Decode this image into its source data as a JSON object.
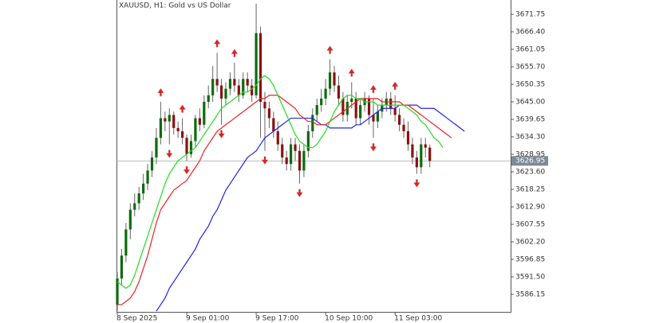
{
  "chart_data": {
    "type": "candlestick",
    "title": "XAUUSD, H1:  Gold vs US Dollar",
    "categories": [
      "8 Sep 2025",
      null,
      null,
      null,
      null,
      null,
      null,
      null,
      null,
      null,
      null,
      null,
      null,
      null,
      null,
      null,
      "9 Sep 01:00",
      null,
      null,
      null,
      null,
      null,
      null,
      null,
      null,
      null,
      null,
      null,
      null,
      null,
      null,
      null,
      "9 Sep 17:00",
      null,
      null,
      null,
      null,
      null,
      null,
      null,
      null,
      null,
      null,
      null,
      null,
      null,
      null,
      null,
      "10 Sep 10:00",
      null,
      null,
      null,
      null,
      null,
      null,
      null,
      null,
      null,
      null,
      null,
      null,
      null,
      null,
      null,
      "11 Sep 03:00",
      null,
      null,
      null,
      null,
      null,
      null,
      null,
      null,
      null,
      null,
      null,
      null,
      null,
      null,
      null,
      null
    ],
    "open": [
      3583,
      3591,
      3598,
      3606,
      3612,
      3614,
      3617,
      3620,
      3624,
      3628,
      3634,
      3640,
      3639,
      3641,
      3637,
      3636,
      3634,
      3629,
      3633,
      3640,
      3638,
      3645,
      3647,
      3652,
      3650,
      3646,
      3649,
      3652,
      3650,
      3647,
      3652,
      3650,
      3647,
      3666,
      3645,
      3643,
      3640,
      3636,
      3632,
      3628,
      3626,
      3632,
      3630,
      3624,
      3630,
      3636,
      3641,
      3644,
      3646,
      3649,
      3654,
      3650,
      3646,
      3641,
      3645,
      3646,
      3640,
      3644,
      3646,
      3641,
      3639,
      3642,
      3644,
      3646,
      3643,
      3641,
      3638,
      3636,
      3632,
      3628,
      3625,
      3632,
      3631,
      null,
      null,
      null,
      null,
      null,
      null,
      null,
      null
    ],
    "high": [
      3593,
      3600,
      3608,
      3614,
      3617,
      3619,
      3623,
      3626,
      3630,
      3637,
      3645,
      3642,
      3643,
      3642,
      3639,
      3640,
      3635,
      3635,
      3641,
      3643,
      3647,
      3650,
      3656,
      3660,
      3652,
      3651,
      3654,
      3657,
      3652,
      3654,
      3654,
      3652,
      3675,
      3668,
      3648,
      3645,
      3642,
      3639,
      3634,
      3630,
      3634,
      3634,
      3632,
      3632,
      3638,
      3643,
      3646,
      3649,
      3652,
      3658,
      3656,
      3653,
      3648,
      3647,
      3651,
      3648,
      3646,
      3648,
      3647,
      3646,
      3644,
      3646,
      3648,
      3648,
      3647,
      3643,
      3640,
      3639,
      3634,
      3630,
      3634,
      3634,
      3632,
      null,
      null,
      null,
      null,
      null,
      null,
      null,
      null
    ],
    "low": [
      3581,
      3589,
      3596,
      3603,
      3610,
      3612,
      3615,
      3618,
      3622,
      3626,
      3632,
      3636,
      3632,
      3635,
      3634,
      3632,
      3627,
      3628,
      3631,
      3636,
      3637,
      3643,
      3645,
      3648,
      3638,
      3644,
      3647,
      3648,
      3645,
      3646,
      3648,
      3645,
      3646,
      3634,
      3630,
      3637,
      3634,
      3630,
      3626,
      3624,
      3624,
      3627,
      3620,
      3622,
      3628,
      3634,
      3639,
      3642,
      3644,
      3647,
      3648,
      3644,
      3639,
      3639,
      3643,
      3638,
      3638,
      3642,
      3638,
      3634,
      3637,
      3640,
      3642,
      3641,
      3639,
      3636,
      3634,
      3630,
      3626,
      3623,
      3623,
      3628,
      3625,
      null,
      null,
      null,
      null,
      null,
      null,
      null,
      null
    ],
    "close": [
      3591,
      3598,
      3606,
      3612,
      3614,
      3617,
      3620,
      3624,
      3628,
      3634,
      3640,
      3639,
      3641,
      3637,
      3636,
      3634,
      3629,
      3633,
      3640,
      3638,
      3645,
      3647,
      3652,
      3650,
      3646,
      3649,
      3652,
      3650,
      3647,
      3652,
      3650,
      3647,
      3666,
      3645,
      3643,
      3640,
      3636,
      3632,
      3628,
      3626,
      3632,
      3630,
      3624,
      3630,
      3636,
      3641,
      3644,
      3646,
      3649,
      3654,
      3650,
      3646,
      3641,
      3645,
      3646,
      3640,
      3644,
      3646,
      3641,
      3639,
      3642,
      3644,
      3646,
      3643,
      3641,
      3638,
      3636,
      3632,
      3628,
      3625,
      3632,
      3631,
      3626.95,
      null,
      null,
      null,
      null,
      null,
      null,
      null,
      null
    ],
    "up_color": "#0b6b0b",
    "down_color": "#8b1010",
    "lines": [
      {
        "color": "#2222ee",
        "values": [
          null,
          null,
          null,
          null,
          null,
          null,
          null,
          null,
          null,
          3581,
          3583,
          3585,
          3588,
          3590,
          3592,
          3594,
          3596,
          3598,
          3600,
          3603,
          3605,
          3607,
          3610,
          3612,
          3615,
          3618,
          3620,
          3622,
          3624,
          3626,
          3628,
          3629,
          3630,
          3632,
          3634,
          3635,
          3636,
          3637,
          3638,
          3639,
          3640,
          3640,
          3640,
          3640,
          3640,
          3640,
          3639,
          3638,
          3638,
          3637,
          3637,
          3637,
          3637,
          3637,
          3637,
          3638,
          3638,
          3639,
          3640,
          3641,
          3642,
          3643,
          3643,
          3643,
          3643,
          3644,
          3644,
          3644,
          3644,
          3644,
          3643,
          3643,
          3643,
          3643,
          3642,
          3641,
          3640,
          3639,
          3638,
          3637,
          3636
        ]
      },
      {
        "color": "#ee2222",
        "values": [
          3583,
          3583,
          3584,
          3585,
          3587,
          3590,
          3594,
          3598,
          3603,
          3608,
          3612,
          3614,
          3616,
          3618,
          3619,
          3620,
          3621,
          3623,
          3625,
          3627,
          3630,
          3632,
          3634,
          3636,
          3637,
          3638,
          3639,
          3640,
          3641,
          3642,
          3643,
          3644,
          3645,
          3646,
          3646,
          3647,
          3647,
          3647,
          3646,
          3645,
          3644,
          3643,
          3641,
          3640,
          3639,
          3639,
          3638,
          3638,
          3638,
          3639,
          3640,
          3641,
          3642,
          3643,
          3644,
          3645,
          3646,
          3646,
          3646,
          3646,
          3646,
          3645,
          3645,
          3645,
          3645,
          3645,
          3644,
          3644,
          3643,
          3642,
          3641,
          3640,
          3639,
          3638,
          3637,
          3636,
          3635,
          3634,
          null,
          null,
          null
        ]
      },
      {
        "color": "#22dd22",
        "values": [
          3590,
          3589,
          3588,
          3589,
          3592,
          3596,
          3600,
          3604,
          3608,
          3612,
          3616,
          3620,
          3623,
          3625,
          3627,
          3628,
          3629,
          3630,
          3631,
          3633,
          3635,
          3637,
          3639,
          3641,
          3643,
          3644,
          3645,
          3646,
          3647,
          3648,
          3648,
          3649,
          3650,
          3652,
          3653,
          3652,
          3650,
          3647,
          3644,
          3641,
          3638,
          3635,
          3633,
          3632,
          3631,
          3631,
          3632,
          3634,
          3636,
          3639,
          3642,
          3644,
          3646,
          3647,
          3647,
          3646,
          3646,
          3645,
          3645,
          3645,
          3644,
          3644,
          3644,
          3644,
          3644,
          3644,
          3644,
          3643,
          3642,
          3641,
          3639,
          3638,
          3636,
          3634,
          3633,
          3631,
          null,
          null,
          null,
          null,
          null
        ]
      }
    ],
    "fractal_color": "#e02020",
    "fractals_up": [
      null,
      null,
      null,
      null,
      null,
      null,
      null,
      null,
      null,
      null,
      3645,
      null,
      null,
      null,
      null,
      3640,
      null,
      null,
      null,
      null,
      null,
      null,
      null,
      3660,
      null,
      null,
      null,
      3657,
      null,
      null,
      null,
      null,
      3675,
      null,
      null,
      null,
      null,
      null,
      null,
      null,
      null,
      null,
      null,
      null,
      null,
      null,
      null,
      null,
      null,
      3658,
      null,
      null,
      null,
      null,
      3651,
      null,
      null,
      null,
      null,
      3646,
      null,
      null,
      null,
      null,
      3647,
      null,
      null,
      null,
      null,
      null,
      null,
      null,
      null,
      null,
      null,
      null,
      null,
      null,
      null,
      null,
      null
    ],
    "fractals_down": [
      null,
      null,
      null,
      null,
      null,
      null,
      null,
      null,
      null,
      null,
      null,
      null,
      3632,
      null,
      null,
      null,
      3627,
      null,
      null,
      null,
      null,
      null,
      null,
      null,
      3638,
      null,
      null,
      null,
      null,
      null,
      null,
      null,
      null,
      null,
      3630,
      null,
      null,
      null,
      null,
      null,
      null,
      null,
      3620,
      null,
      null,
      null,
      null,
      null,
      null,
      null,
      null,
      null,
      null,
      null,
      null,
      null,
      null,
      null,
      null,
      3634,
      null,
      null,
      null,
      null,
      null,
      null,
      null,
      null,
      null,
      3623,
      null,
      null,
      null,
      null,
      null,
      null,
      null,
      null,
      null,
      null,
      null
    ],
    "last_price": 3626.95,
    "ylim": [
      3580.8,
      3676.13
    ],
    "yticks": [
      3671.75,
      {
        "value": 3666.4,
        "label": "3666.40"
      },
      3661.05,
      {
        "value": 3655.7,
        "label": "3655.70"
      },
      3650.35,
      {
        "value": 3645,
        "label": "3645.00"
      },
      3639.65,
      {
        "value": 3634.3,
        "label": "3634.30"
      },
      3628.95,
      {
        "value": 3623.6,
        "label": "3623.60"
      },
      3618.25,
      {
        "value": 3612.9,
        "label": "3612.90"
      },
      3607.55,
      {
        "value": 3602.2,
        "label": "3602.20"
      },
      3596.85,
      {
        "value": 3591.5,
        "label": "3591.50"
      },
      3586.15
    ]
  }
}
